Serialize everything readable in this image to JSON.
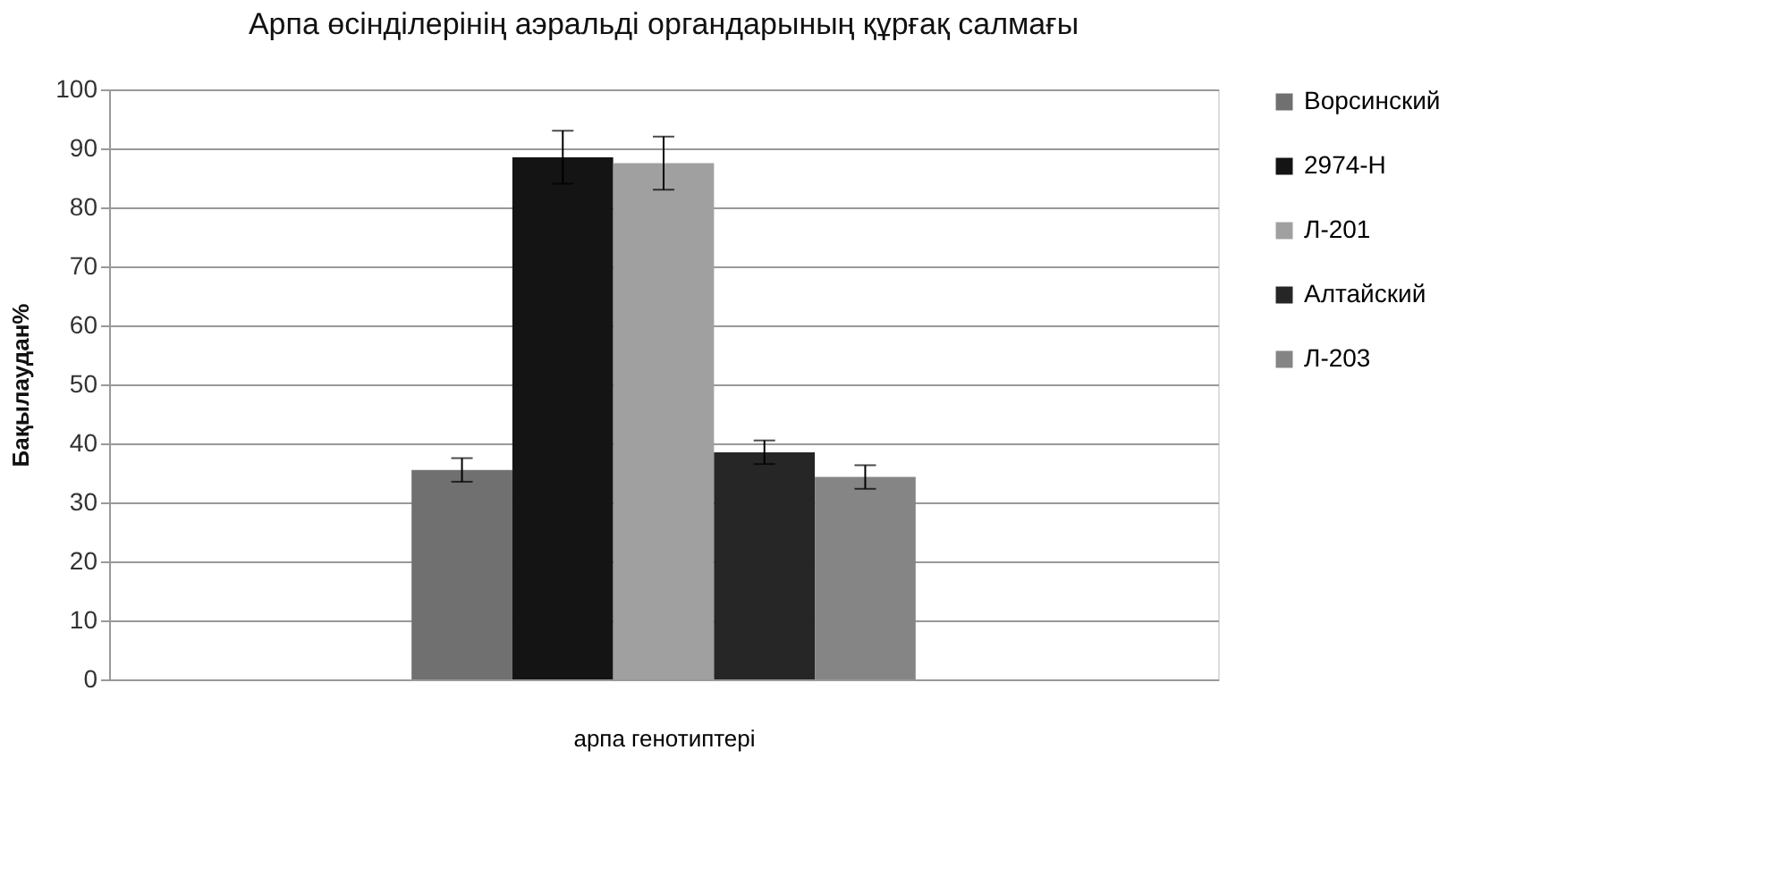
{
  "chart_data": {
    "type": "bar",
    "title": "Арпа өсінділерінің аэральді органдарының құрғақ салмағы",
    "xlabel": "арпа генотиптері",
    "ylabel": "Бақылаудан%",
    "categories": [
      null
    ],
    "series": [
      {
        "name": "Ворсинский",
        "color": "#707070",
        "values": [
          35.5
        ],
        "errors": [
          2
        ]
      },
      {
        "name": "2974-Н",
        "color": "#141414",
        "values": [
          88.5
        ],
        "errors": [
          4.5
        ]
      },
      {
        "name": "Л-201",
        "color": "#a0a0a0",
        "values": [
          87.5
        ],
        "errors": [
          4.5
        ]
      },
      {
        "name": "Алтайский",
        "color": "#262626",
        "values": [
          38.5
        ],
        "errors": [
          2
        ]
      },
      {
        "name": "Л-203",
        "color": "#858585",
        "values": [
          34.3
        ],
        "errors": [
          2
        ]
      }
    ],
    "ylim": [
      0,
      100
    ],
    "yticks": [
      0,
      10,
      20,
      30,
      40,
      50,
      60,
      70,
      80,
      90,
      100
    ],
    "grid": "y",
    "legend": "right"
  }
}
